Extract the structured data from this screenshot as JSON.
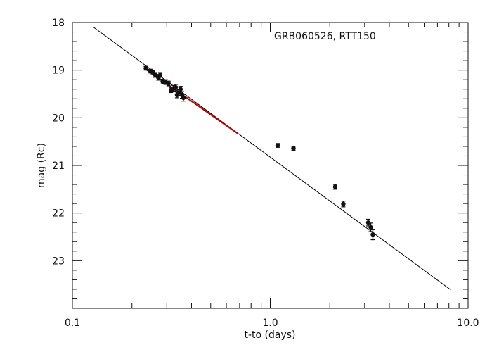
{
  "chart_data": {
    "type": "scatter",
    "title": "",
    "xlabel": "t-to (days)",
    "ylabel": "mag (Rc)",
    "annotation": "GRB060526, RTT150",
    "xscale": "log",
    "xlim": [
      0.1,
      10.0
    ],
    "ylim": [
      24.0,
      18.0
    ],
    "y_inverted": true,
    "grid": false,
    "legend": "none",
    "x_ticks": [
      {
        "value": 0.1,
        "label": "0.1"
      },
      {
        "value": 1.0,
        "label": "1.0"
      },
      {
        "value": 10.0,
        "label": "10.0"
      }
    ],
    "y_ticks": [
      {
        "value": 18,
        "label": "18"
      },
      {
        "value": 19,
        "label": "19"
      },
      {
        "value": 20,
        "label": "20"
      },
      {
        "value": 21,
        "label": "21"
      },
      {
        "value": 22,
        "label": "22"
      },
      {
        "value": 23,
        "label": "23"
      }
    ],
    "points": [
      {
        "x": 0.235,
        "y": 18.96,
        "err": 0.04
      },
      {
        "x": 0.248,
        "y": 19.02,
        "err": 0.04
      },
      {
        "x": 0.255,
        "y": 19.04,
        "err": 0.04
      },
      {
        "x": 0.262,
        "y": 19.1,
        "err": 0.05
      },
      {
        "x": 0.272,
        "y": 19.16,
        "err": 0.05
      },
      {
        "x": 0.278,
        "y": 19.1,
        "err": 0.05
      },
      {
        "x": 0.286,
        "y": 19.24,
        "err": 0.05
      },
      {
        "x": 0.296,
        "y": 19.25,
        "err": 0.05
      },
      {
        "x": 0.306,
        "y": 19.28,
        "err": 0.05
      },
      {
        "x": 0.315,
        "y": 19.42,
        "err": 0.05
      },
      {
        "x": 0.325,
        "y": 19.38,
        "err": 0.06
      },
      {
        "x": 0.333,
        "y": 19.36,
        "err": 0.06
      },
      {
        "x": 0.338,
        "y": 19.52,
        "err": 0.06
      },
      {
        "x": 0.345,
        "y": 19.47,
        "err": 0.06
      },
      {
        "x": 0.352,
        "y": 19.4,
        "err": 0.06
      },
      {
        "x": 0.358,
        "y": 19.52,
        "err": 0.07
      },
      {
        "x": 0.364,
        "y": 19.58,
        "err": 0.07
      },
      {
        "x": 1.09,
        "y": 20.58,
        "err": 0.04
      },
      {
        "x": 1.31,
        "y": 20.64,
        "err": 0.04
      },
      {
        "x": 2.13,
        "y": 21.45,
        "err": 0.05
      },
      {
        "x": 2.34,
        "y": 21.81,
        "err": 0.06
      },
      {
        "x": 3.13,
        "y": 22.2,
        "err": 0.07
      },
      {
        "x": 3.22,
        "y": 22.3,
        "err": 0.09
      },
      {
        "x": 3.3,
        "y": 22.45,
        "err": 0.11
      }
    ],
    "fit_lines": [
      {
        "color": "#000000",
        "x": [
          0.128,
          8.1
        ],
        "y": [
          18.1,
          23.6
        ]
      },
      {
        "color": "#c00000",
        "x": [
          0.235,
          0.68
        ],
        "y": [
          18.98,
          20.32
        ]
      }
    ]
  }
}
